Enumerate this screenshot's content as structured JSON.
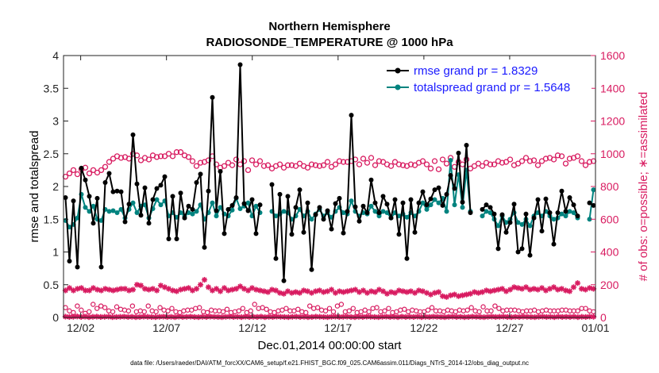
{
  "chart_data": {
    "type": "line",
    "title": "Northern Hemisphere",
    "subtitle": "RADIOSONDE_TEMPERATURE @ 1000 hPa",
    "xlabel": "Dec.01,2014 00:00:00 start",
    "ylabel_left": "rmse and totalspread",
    "ylabel_right": "# of obs: o=possible; ∗=assimilated",
    "xlim": [
      1,
      32
    ],
    "ylim_left": [
      0,
      4
    ],
    "ylim_right": [
      0,
      1600
    ],
    "x_ticks": [
      {
        "x": 2,
        "label": "12/02"
      },
      {
        "x": 7,
        "label": "12/07"
      },
      {
        "x": 12,
        "label": "12/12"
      },
      {
        "x": 17,
        "label": "12/17"
      },
      {
        "x": 22,
        "label": "12/22"
      },
      {
        "x": 27,
        "label": "12/27"
      },
      {
        "x": 32,
        "label": "01/01"
      }
    ],
    "y_ticks_left": [
      "0",
      "0.5",
      "1",
      "1.5",
      "2",
      "2.5",
      "3",
      "3.5",
      "4"
    ],
    "y_ticks_right": [
      "0",
      "200",
      "400",
      "600",
      "800",
      "1000",
      "1200",
      "1400",
      "1600"
    ],
    "grid": false,
    "legend_position": "top-right",
    "series": [
      {
        "name": "rmse grand pr = 1.8329",
        "color": "#000000",
        "values": [
          1.83,
          0.86,
          1.78,
          0.77,
          2.28,
          2.1,
          1.85,
          1.44,
          1.82,
          0.77,
          2.06,
          2.2,
          1.92,
          1.93,
          1.92,
          1.46,
          1.73,
          2.79,
          2.04,
          1.56,
          1.98,
          1.44,
          1.8,
          1.97,
          2.02,
          2.15,
          1.2,
          1.85,
          1.2,
          1.9,
          1.52,
          1.7,
          1.65,
          2.06,
          2.19,
          1.07,
          1.93,
          3.36,
          1.63,
          2.23,
          1.28,
          1.65,
          1.71,
          1.83,
          3.86,
          1.74,
          1.63,
          1.8,
          1.28,
          1.72,
          null,
          null,
          2.03,
          0.9,
          1.88,
          0.56,
          1.85,
          1.27,
          1.68,
          1.95,
          1.3,
          1.75,
          0.73,
          1.57,
          1.68,
          1.5,
          1.63,
          1.35,
          1.74,
          1.82,
          1.29,
          1.62,
          3.09,
          1.69,
          1.47,
          1.7,
          1.6,
          2.1,
          1.75,
          1.6,
          1.85,
          1.73,
          1.52,
          1.8,
          1.27,
          1.75,
          0.9,
          1.8,
          1.3,
          1.75,
          1.92,
          1.72,
          1.81,
          1.95,
          1.98,
          1.71,
          1.88,
          2.17,
          1.97,
          2.51,
          1.76,
          2.63,
          1.6,
          null,
          null,
          1.65,
          1.72,
          1.68,
          1.58,
          1.05,
          1.57,
          1.3,
          1.45,
          1.73,
          1.0,
          1.05,
          1.58,
          0.95,
          1.52,
          1.8,
          1.32,
          1.81,
          1.6,
          1.12,
          1.6,
          1.93,
          1.62,
          1.83,
          1.72,
          1.55,
          null,
          null,
          1.75,
          1.71
        ]
      },
      {
        "name": "totalspread grand pr = 1.5648",
        "color": "#00837f",
        "values": [
          1.48,
          1.38,
          1.42,
          1.52,
          1.88,
          1.68,
          1.62,
          1.7,
          1.5,
          1.48,
          1.65,
          1.62,
          1.63,
          1.6,
          1.65,
          1.52,
          1.65,
          1.75,
          1.6,
          1.7,
          1.72,
          1.52,
          1.66,
          1.8,
          1.72,
          1.78,
          1.55,
          1.6,
          1.53,
          1.6,
          1.55,
          1.6,
          1.58,
          1.62,
          1.72,
          1.5,
          1.6,
          1.75,
          1.55,
          1.68,
          1.58,
          1.55,
          1.64,
          1.82,
          1.66,
          1.7,
          1.75,
          1.55,
          1.7,
          1.6,
          null,
          null,
          1.62,
          1.55,
          1.58,
          1.62,
          1.6,
          1.5,
          1.55,
          1.65,
          1.55,
          1.62,
          1.5,
          1.58,
          1.65,
          1.55,
          1.6,
          1.53,
          1.62,
          1.68,
          1.6,
          1.58,
          1.78,
          1.62,
          1.55,
          1.6,
          1.58,
          1.7,
          1.62,
          1.55,
          1.62,
          1.6,
          1.52,
          1.6,
          1.55,
          1.58,
          1.53,
          1.6,
          1.55,
          1.62,
          1.75,
          1.65,
          1.72,
          1.8,
          1.75,
          1.82,
          1.62,
          2.4,
          1.72,
          2.18,
          1.68,
          2.25,
          1.62,
          null,
          null,
          1.55,
          1.62,
          1.6,
          1.5,
          1.4,
          1.55,
          1.45,
          1.5,
          1.6,
          1.45,
          1.42,
          1.5,
          1.4,
          1.55,
          1.6,
          1.55,
          1.62,
          1.55,
          1.5,
          1.52,
          1.58,
          1.55,
          1.62,
          1.6,
          1.52,
          null,
          null,
          1.5,
          1.95
        ]
      },
      {
        "name": "possible obs",
        "color": "#d81b60",
        "axis": "right",
        "marker": "o",
        "values": [
          860,
          880,
          900,
          875,
          905,
          915,
          880,
          900,
          885,
          900,
          920,
          950,
          970,
          985,
          975,
          980,
          970,
          1000,
          990,
          960,
          975,
          965,
          990,
          980,
          985,
          985,
          1000,
          985,
          1010,
          1010,
          990,
          980,
          955,
          925,
          945,
          950,
          960,
          985,
          935,
          915,
          925,
          945,
          930,
          965,
          935,
          955,
          900,
          960,
          935,
          955,
          925,
          930,
          910,
          925,
          935,
          915,
          930,
          930,
          925,
          940,
          925,
          915,
          935,
          930,
          925,
          930,
          950,
          920,
          935,
          955,
          950,
          950,
          955,
          965,
          935,
          970,
          945,
          975,
          930,
          955,
          950,
          935,
          925,
          950,
          935,
          930,
          925,
          935,
          930,
          945,
          955,
          935,
          910,
          955,
          905,
          965,
          940,
          975,
          920,
          950,
          935,
          965,
          910,
          925,
          940,
          925,
          945,
          935,
          935,
          955,
          945,
          950,
          965,
          930,
          940,
          955,
          975,
          955,
          960,
          930,
          955,
          970,
          975,
          965,
          990,
          985,
          940,
          970,
          975,
          985,
          955,
          930,
          950,
          955
        ]
      },
      {
        "name": "assimilated obs",
        "color": "#d81b60",
        "axis": "right",
        "marker": "*",
        "values": [
          165,
          180,
          165,
          175,
          180,
          165,
          165,
          180,
          170,
          165,
          175,
          170,
          165,
          170,
          175,
          175,
          165,
          170,
          200,
          195,
          175,
          170,
          175,
          165,
          195,
          185,
          175,
          165,
          160,
          170,
          175,
          180,
          165,
          175,
          200,
          230,
          185,
          165,
          175,
          160,
          180,
          165,
          170,
          175,
          190,
          175,
          165,
          180,
          170,
          165,
          160,
          155,
          170,
          165,
          150,
          145,
          160,
          150,
          155,
          150,
          165,
          160,
          150,
          160,
          165,
          155,
          160,
          170,
          150,
          160,
          155,
          160,
          165,
          170,
          155,
          165,
          150,
          160,
          155,
          170,
          160,
          145,
          155,
          150,
          165,
          160,
          155,
          160,
          150,
          165,
          160,
          150,
          140,
          150,
          155,
          130,
          125,
          135,
          140,
          130,
          135,
          140,
          145,
          155,
          150,
          155,
          165,
          160,
          165,
          170,
          175,
          160,
          170,
          185,
          180,
          175,
          185,
          170,
          175,
          170,
          180,
          165,
          175,
          185,
          170,
          175,
          165,
          160,
          185,
          210,
          175,
          170,
          180,
          175
        ]
      }
    ],
    "bottom_row_obs": {
      "note": "small markers near y=0 on right axis",
      "possible_values": [
        60,
        40,
        30,
        70,
        45,
        25,
        35,
        80,
        55,
        70,
        60,
        40,
        35,
        65,
        50,
        45,
        40,
        70,
        35,
        40,
        35,
        70,
        40,
        35,
        60,
        45,
        40,
        55,
        35,
        30,
        40,
        45,
        45,
        55,
        60,
        35,
        30,
        45,
        40,
        40,
        35,
        50,
        30,
        35,
        40,
        55,
        30,
        40,
        80,
        55,
        60,
        50,
        35,
        30,
        40,
        45,
        55,
        40,
        40,
        50,
        35,
        30,
        70,
        55,
        60,
        45,
        40,
        55,
        35,
        70,
        80,
        35,
        40,
        55,
        30,
        35,
        45,
        35,
        55,
        60,
        35,
        40,
        55,
        30,
        35,
        45,
        50,
        35,
        45,
        40,
        35,
        35,
        45,
        60,
        40,
        40,
        35,
        45,
        40,
        35,
        45,
        40,
        45,
        60,
        40,
        35,
        65,
        40,
        40,
        70,
        55,
        40,
        45,
        45,
        45,
        40,
        35,
        40,
        40,
        45,
        35,
        40,
        45,
        40,
        40,
        40,
        45,
        45,
        40,
        40,
        40,
        55,
        55,
        40,
        35
      ],
      "assimilated_values": [
        5,
        3,
        4,
        6,
        3,
        5,
        2,
        4,
        5,
        3,
        4,
        5,
        2,
        3,
        4,
        5,
        3,
        4,
        2,
        3,
        5,
        4,
        3,
        2,
        4,
        5,
        3,
        4,
        2,
        5,
        3,
        4,
        5,
        3,
        2,
        4,
        3,
        5,
        4,
        3,
        2,
        4,
        5,
        3,
        4,
        2,
        5,
        3,
        4,
        3,
        5,
        2,
        4,
        3,
        5,
        4,
        3,
        2,
        4,
        5,
        3,
        4,
        2,
        3,
        5,
        4,
        3,
        2,
        4,
        5,
        3,
        4,
        5,
        3,
        2,
        4,
        3,
        5,
        4,
        3,
        2,
        4,
        5,
        3,
        4,
        2,
        5,
        3,
        4,
        3,
        5,
        2,
        4,
        3,
        5,
        4,
        3,
        2,
        4,
        5,
        3,
        4,
        2,
        3,
        5,
        4,
        3,
        2,
        4,
        5,
        3,
        4,
        5,
        3,
        2,
        4,
        3,
        5,
        4,
        3,
        2,
        4,
        5,
        3,
        4,
        2,
        5,
        3,
        4,
        3,
        5,
        2,
        4,
        3,
        5,
        4
      ]
    }
  },
  "footer": {
    "datafile": "data file: /Users/raeder/DAI/ATM_forcXX/CAM6_setup/f.e21.FHIST_BGC.f09_025.CAM6assim.011/Diags_NTrS_2014-12/obs_diag_output.nc"
  }
}
